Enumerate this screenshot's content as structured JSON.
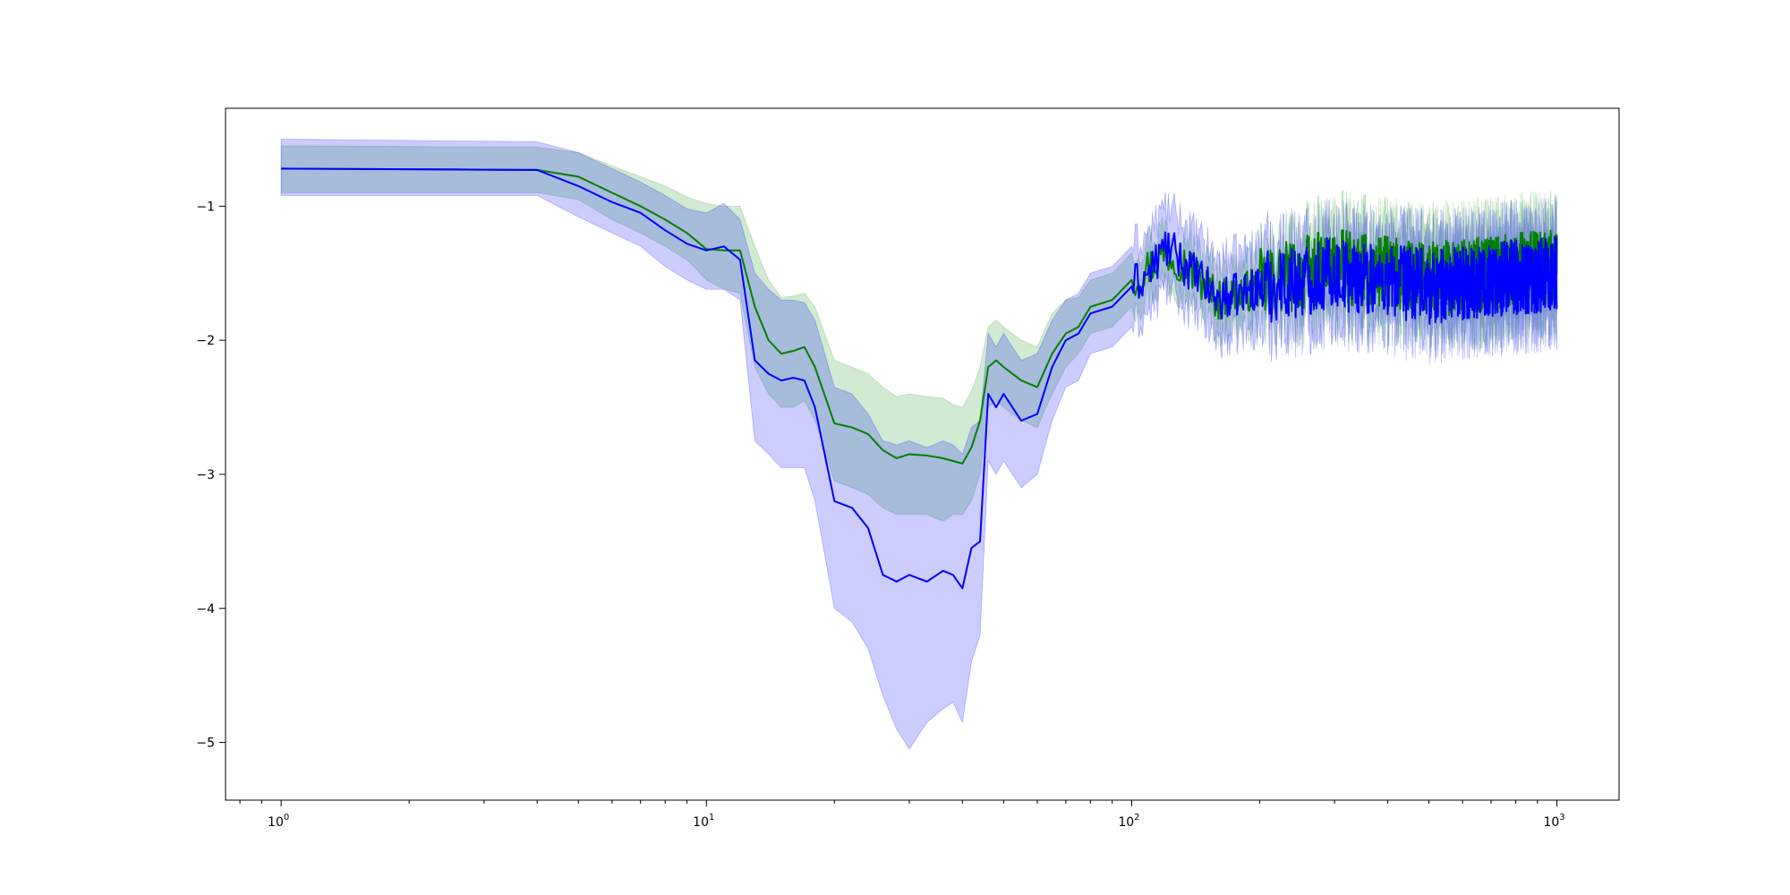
{
  "chart_data": {
    "type": "line",
    "title": "",
    "xlabel": "",
    "ylabel": "",
    "xscale": "log",
    "xlim": [
      0.74,
      1400
    ],
    "ylim": [
      -5.43,
      -0.27
    ],
    "grid": false,
    "x_ticks": [
      {
        "base": "10",
        "exp": "0",
        "value": 1
      },
      {
        "base": "10",
        "exp": "1",
        "value": 10
      },
      {
        "base": "10",
        "exp": "2",
        "value": 100
      },
      {
        "base": "10",
        "exp": "3",
        "value": 1000
      }
    ],
    "y_ticks": [
      {
        "label": "−1",
        "value": -1
      },
      {
        "label": "−2",
        "value": -2
      },
      {
        "label": "−3",
        "value": -3
      },
      {
        "label": "−4",
        "value": -4
      },
      {
        "label": "−5",
        "value": -5
      }
    ],
    "series": [
      {
        "color": "#008000",
        "band_color": "#2ca02c",
        "band_opacity": 0.22,
        "x": [
          1,
          4,
          5,
          6,
          7,
          8,
          9,
          10,
          11,
          12,
          13,
          14,
          15,
          16,
          17,
          18,
          20,
          22,
          24,
          26,
          28,
          30,
          33,
          36,
          38,
          40,
          42,
          44,
          46,
          48,
          50,
          55,
          60,
          65,
          70,
          75,
          80,
          90,
          100,
          110,
          120,
          130,
          140,
          150,
          160,
          180,
          200,
          250,
          300,
          400,
          500,
          700,
          1000
        ],
        "y": [
          -0.72,
          -0.73,
          -0.78,
          -0.9,
          -1.0,
          -1.1,
          -1.2,
          -1.32,
          -1.33,
          -1.33,
          -1.75,
          -2.0,
          -2.1,
          -2.08,
          -2.05,
          -2.2,
          -2.62,
          -2.65,
          -2.7,
          -2.82,
          -2.88,
          -2.85,
          -2.86,
          -2.88,
          -2.9,
          -2.92,
          -2.8,
          -2.6,
          -2.2,
          -2.15,
          -2.2,
          -2.3,
          -2.35,
          -2.1,
          -1.95,
          -1.9,
          -1.75,
          -1.7,
          -1.55,
          -1.45,
          -1.35,
          -1.4,
          -1.5,
          -1.6,
          -1.7,
          -1.65,
          -1.6,
          -1.5,
          -1.45,
          -1.5,
          -1.55,
          -1.5,
          -1.45
        ],
        "lower": [
          -0.9,
          -0.9,
          -0.95,
          -1.1,
          -1.2,
          -1.3,
          -1.4,
          -1.55,
          -1.62,
          -1.65,
          -2.2,
          -2.4,
          -2.5,
          -2.5,
          -2.45,
          -2.6,
          -3.05,
          -3.1,
          -3.15,
          -3.25,
          -3.3,
          -3.3,
          -3.3,
          -3.35,
          -3.3,
          -3.3,
          -3.2,
          -3.0,
          -2.5,
          -2.45,
          -2.5,
          -2.6,
          -2.65,
          -2.4,
          -2.2,
          -2.1,
          -1.95,
          -1.9,
          -1.75,
          -1.65,
          -1.55,
          -1.6,
          -1.7,
          -1.8,
          -1.9,
          -1.85,
          -1.85,
          -1.8,
          -1.75,
          -1.8,
          -1.85,
          -1.8,
          -1.75
        ],
        "upper": [
          -0.55,
          -0.56,
          -0.6,
          -0.7,
          -0.78,
          -0.85,
          -0.93,
          -0.98,
          -1.0,
          -1.0,
          -1.3,
          -1.55,
          -1.68,
          -1.67,
          -1.65,
          -1.75,
          -2.15,
          -2.2,
          -2.25,
          -2.35,
          -2.42,
          -2.4,
          -2.42,
          -2.43,
          -2.48,
          -2.5,
          -2.38,
          -2.2,
          -1.9,
          -1.85,
          -1.9,
          -2.0,
          -2.05,
          -1.8,
          -1.7,
          -1.68,
          -1.55,
          -1.5,
          -1.35,
          -1.25,
          -1.15,
          -1.2,
          -1.3,
          -1.4,
          -1.5,
          -1.45,
          -1.4,
          -1.25,
          -1.15,
          -1.2,
          -1.25,
          -1.2,
          -1.15
        ]
      },
      {
        "color": "#0000ff",
        "band_color": "#0000ff",
        "band_opacity": 0.2,
        "x": [
          1,
          4,
          5,
          6,
          7,
          8,
          9,
          10,
          11,
          12,
          13,
          14,
          15,
          16,
          17,
          18,
          20,
          22,
          24,
          26,
          28,
          30,
          33,
          36,
          38,
          40,
          42,
          44,
          46,
          48,
          50,
          55,
          60,
          65,
          70,
          75,
          80,
          90,
          100,
          110,
          120,
          130,
          140,
          150,
          160,
          180,
          200,
          250,
          300,
          400,
          500,
          700,
          1000
        ],
        "y": [
          -0.72,
          -0.73,
          -0.85,
          -0.97,
          -1.05,
          -1.18,
          -1.28,
          -1.33,
          -1.3,
          -1.4,
          -2.15,
          -2.25,
          -2.3,
          -2.28,
          -2.3,
          -2.5,
          -3.2,
          -3.25,
          -3.4,
          -3.75,
          -3.8,
          -3.75,
          -3.8,
          -3.72,
          -3.75,
          -3.85,
          -3.55,
          -3.5,
          -2.4,
          -2.5,
          -2.4,
          -2.6,
          -2.55,
          -2.2,
          -2.0,
          -1.95,
          -1.8,
          -1.75,
          -1.6,
          -1.5,
          -1.3,
          -1.4,
          -1.5,
          -1.6,
          -1.7,
          -1.65,
          -1.6,
          -1.55,
          -1.5,
          -1.55,
          -1.6,
          -1.55,
          -1.5
        ],
        "lower": [
          -0.92,
          -0.92,
          -1.08,
          -1.2,
          -1.3,
          -1.45,
          -1.55,
          -1.62,
          -1.62,
          -1.7,
          -2.75,
          -2.85,
          -2.95,
          -2.95,
          -2.95,
          -3.2,
          -4.0,
          -4.1,
          -4.3,
          -4.65,
          -4.9,
          -5.05,
          -4.85,
          -4.75,
          -4.7,
          -4.85,
          -4.4,
          -4.2,
          -2.9,
          -3.0,
          -2.9,
          -3.1,
          -3.0,
          -2.6,
          -2.35,
          -2.3,
          -2.1,
          -2.05,
          -1.9,
          -1.8,
          -1.6,
          -1.7,
          -1.8,
          -1.9,
          -2.0,
          -1.95,
          -1.9,
          -1.85,
          -1.8,
          -1.85,
          -1.9,
          -1.85,
          -1.8
        ],
        "upper": [
          -0.5,
          -0.52,
          -0.6,
          -0.72,
          -0.82,
          -0.92,
          -1.02,
          -1.05,
          -0.98,
          -1.1,
          -1.5,
          -1.62,
          -1.7,
          -1.7,
          -1.72,
          -1.85,
          -2.35,
          -2.4,
          -2.55,
          -2.75,
          -2.78,
          -2.75,
          -2.8,
          -2.75,
          -2.78,
          -2.85,
          -2.65,
          -2.6,
          -1.95,
          -2.05,
          -1.95,
          -2.15,
          -2.1,
          -1.85,
          -1.7,
          -1.65,
          -1.5,
          -1.45,
          -1.3,
          -1.2,
          -1.0,
          -1.1,
          -1.2,
          -1.3,
          -1.4,
          -1.35,
          -1.3,
          -1.25,
          -1.2,
          -1.25,
          -1.3,
          -1.25,
          -1.2
        ]
      }
    ]
  }
}
